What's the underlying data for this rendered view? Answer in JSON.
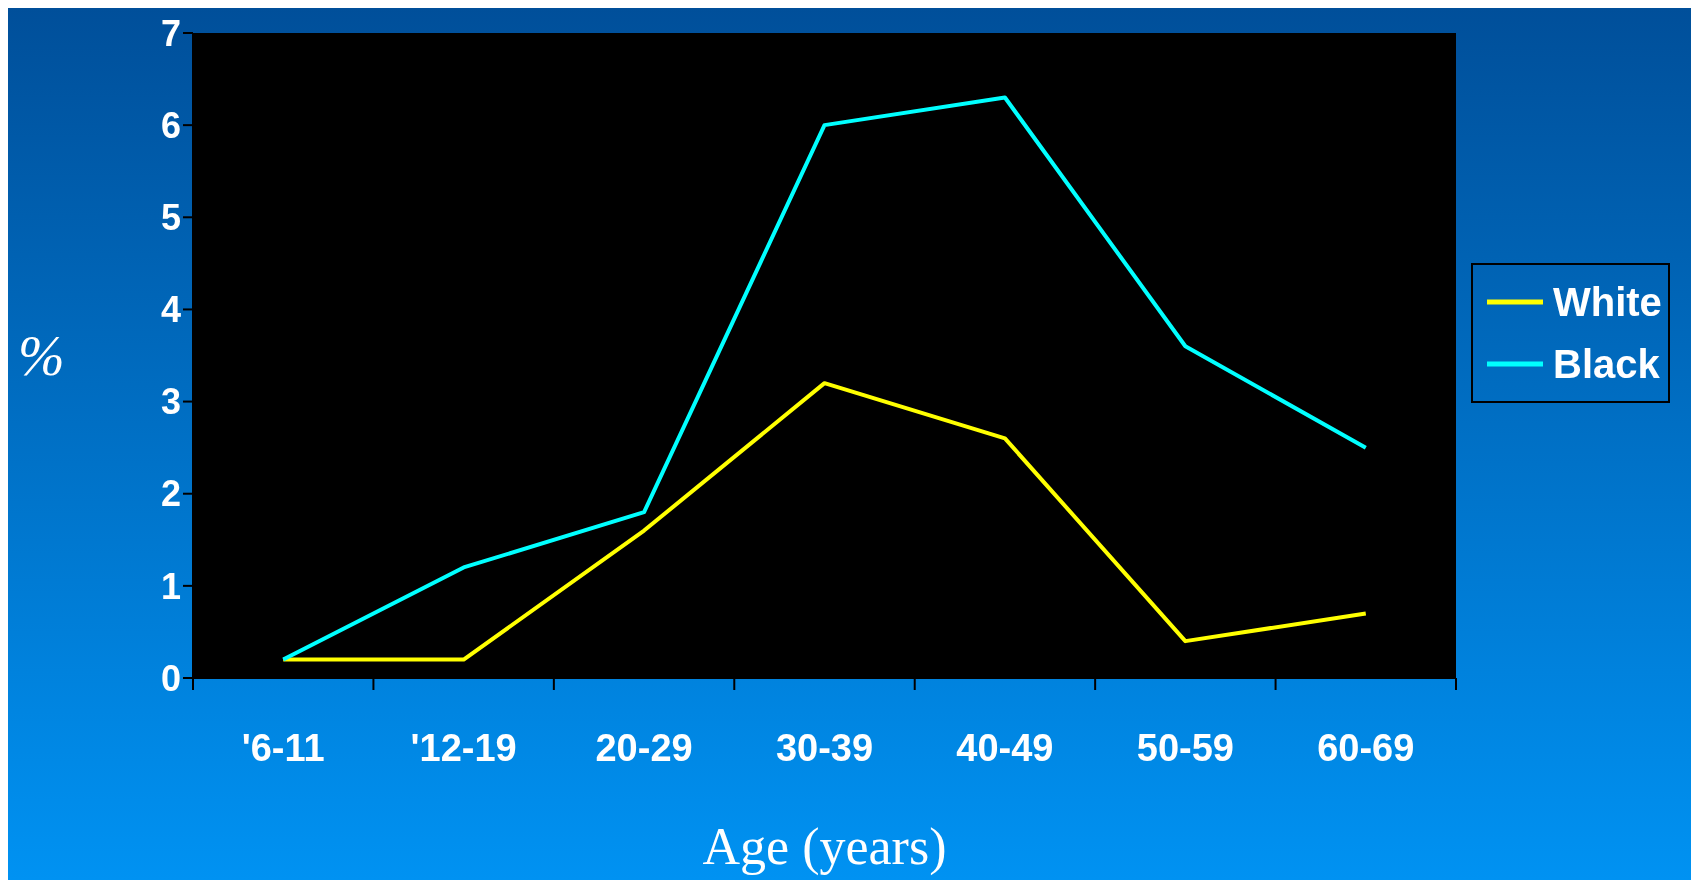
{
  "chart_data": {
    "type": "line",
    "xlabel": "Age (years)",
    "ylabel": "%",
    "categories": [
      "'6-11",
      "'12-19",
      "20-29",
      "30-39",
      "40-49",
      "50-59",
      "60-69"
    ],
    "series": [
      {
        "name": "White",
        "color": "#ffff00",
        "values": [
          0.2,
          0.2,
          1.6,
          3.2,
          2.6,
          0.4,
          0.7
        ]
      },
      {
        "name": "Black",
        "color": "#00ffff",
        "values": [
          0.2,
          1.2,
          1.8,
          6.0,
          6.3,
          3.6,
          2.5
        ]
      }
    ],
    "ylim": [
      0,
      7
    ],
    "yticks": [
      0,
      1,
      2,
      3,
      4,
      5,
      6,
      7
    ],
    "grid": false,
    "legend": "right",
    "marker": "none",
    "line_style": "solid"
  }
}
